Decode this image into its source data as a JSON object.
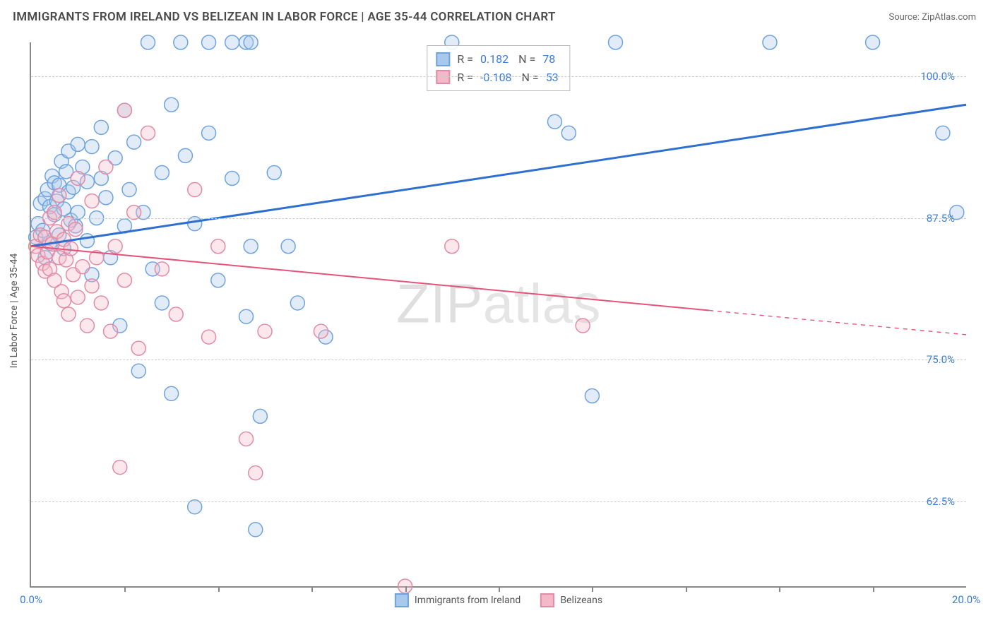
{
  "title": "IMMIGRANTS FROM IRELAND VS BELIZEAN IN LABOR FORCE | AGE 35-44 CORRELATION CHART",
  "source_label": "Source: ZipAtlas.com",
  "y_axis_title": "In Labor Force | Age 35-44",
  "watermark": {
    "bold": "ZIP",
    "thin": "atlas"
  },
  "chart": {
    "type": "scatter",
    "plot_bg": "#ffffff",
    "grid_color": "#cccccc",
    "axis_color": "#888888",
    "tick_label_color": "#3b7dd8",
    "marker_radius": 10,
    "marker_fill_opacity": 0.35,
    "marker_stroke_width": 1.5,
    "xlim": [
      0,
      20
    ],
    "ylim": [
      55,
      103
    ],
    "y_ticks": [
      {
        "v": 62.5,
        "label": "62.5%"
      },
      {
        "v": 75.0,
        "label": "75.0%"
      },
      {
        "v": 87.5,
        "label": "87.5%"
      },
      {
        "v": 100.0,
        "label": "100.0%"
      }
    ],
    "x_ticks_minor": [
      2,
      4,
      6,
      8,
      10,
      12,
      14,
      16,
      18
    ],
    "x_tick_labels": [
      {
        "v": 0,
        "label": "0.0%"
      },
      {
        "v": 20,
        "label": "20.0%"
      }
    ],
    "series": [
      {
        "id": "ireland",
        "name": "Immigrants from Ireland",
        "color_stroke": "#6fa3e0",
        "color_fill": "#a9c9ec",
        "r_value": "0.182",
        "n_value": "78",
        "trend": {
          "color": "#2e6fd1",
          "width": 3,
          "x1": 0,
          "y1": 85.0,
          "x2": 20,
          "y2": 97.5,
          "solid_until_x": 20
        },
        "points": [
          [
            0.1,
            85.8
          ],
          [
            0.15,
            87.0
          ],
          [
            0.2,
            88.8
          ],
          [
            0.25,
            86.4
          ],
          [
            0.3,
            89.2
          ],
          [
            0.3,
            84.0
          ],
          [
            0.35,
            90.0
          ],
          [
            0.4,
            88.5
          ],
          [
            0.4,
            85.3
          ],
          [
            0.45,
            91.2
          ],
          [
            0.5,
            87.8
          ],
          [
            0.5,
            90.6
          ],
          [
            0.55,
            89.0
          ],
          [
            0.6,
            90.4
          ],
          [
            0.6,
            86.0
          ],
          [
            0.65,
            92.5
          ],
          [
            0.7,
            88.3
          ],
          [
            0.7,
            84.8
          ],
          [
            0.75,
            91.6
          ],
          [
            0.8,
            89.8
          ],
          [
            0.8,
            93.4
          ],
          [
            0.85,
            87.3
          ],
          [
            0.9,
            90.2
          ],
          [
            0.95,
            86.8
          ],
          [
            1.0,
            94.0
          ],
          [
            1.0,
            88.0
          ],
          [
            1.1,
            92.0
          ],
          [
            1.2,
            85.5
          ],
          [
            1.2,
            90.7
          ],
          [
            1.3,
            93.8
          ],
          [
            1.3,
            82.5
          ],
          [
            1.4,
            87.5
          ],
          [
            1.5,
            91.0
          ],
          [
            1.5,
            95.5
          ],
          [
            1.6,
            89.3
          ],
          [
            1.7,
            84.0
          ],
          [
            1.8,
            92.8
          ],
          [
            1.9,
            78.0
          ],
          [
            2.0,
            97.0
          ],
          [
            2.0,
            86.8
          ],
          [
            2.1,
            90.0
          ],
          [
            2.2,
            94.2
          ],
          [
            2.3,
            74.0
          ],
          [
            2.4,
            88.0
          ],
          [
            2.5,
            103.0
          ],
          [
            2.6,
            83.0
          ],
          [
            2.8,
            91.5
          ],
          [
            2.8,
            80.0
          ],
          [
            3.0,
            97.5
          ],
          [
            3.0,
            72.0
          ],
          [
            3.2,
            103.0
          ],
          [
            3.3,
            93.0
          ],
          [
            3.5,
            87.0
          ],
          [
            3.5,
            62.0
          ],
          [
            3.8,
            103.0
          ],
          [
            3.8,
            95.0
          ],
          [
            4.0,
            82.0
          ],
          [
            4.3,
            103.0
          ],
          [
            4.3,
            91.0
          ],
          [
            4.6,
            103.0
          ],
          [
            4.6,
            78.8
          ],
          [
            4.7,
            103.0
          ],
          [
            4.7,
            85.0
          ],
          [
            4.8,
            60.0
          ],
          [
            4.9,
            70.0
          ],
          [
            5.2,
            91.5
          ],
          [
            5.5,
            85.0
          ],
          [
            5.7,
            80.0
          ],
          [
            6.3,
            77.0
          ],
          [
            9.0,
            103.0
          ],
          [
            11.2,
            96.0
          ],
          [
            11.5,
            95.0
          ],
          [
            12.0,
            71.8
          ],
          [
            12.5,
            103.0
          ],
          [
            15.8,
            103.0
          ],
          [
            18.0,
            103.0
          ],
          [
            19.5,
            95.0
          ],
          [
            19.8,
            88.0
          ]
        ]
      },
      {
        "id": "belizean",
        "name": "Belizeans",
        "color_stroke": "#e48aa5",
        "color_fill": "#f4b9c9",
        "r_value": "-0.108",
        "n_value": "53",
        "trend": {
          "color": "#e6537a",
          "width": 2,
          "x1": 0,
          "y1": 85.0,
          "x2": 20,
          "y2": 77.2,
          "solid_until_x": 14.5
        },
        "points": [
          [
            0.1,
            85.0
          ],
          [
            0.15,
            84.2
          ],
          [
            0.2,
            86.0
          ],
          [
            0.25,
            83.5
          ],
          [
            0.3,
            85.8
          ],
          [
            0.3,
            82.8
          ],
          [
            0.35,
            84.5
          ],
          [
            0.4,
            87.5
          ],
          [
            0.4,
            83.0
          ],
          [
            0.45,
            85.2
          ],
          [
            0.5,
            88.0
          ],
          [
            0.5,
            82.0
          ],
          [
            0.55,
            86.3
          ],
          [
            0.6,
            84.0
          ],
          [
            0.6,
            89.5
          ],
          [
            0.65,
            81.0
          ],
          [
            0.7,
            85.6
          ],
          [
            0.7,
            80.2
          ],
          [
            0.75,
            83.8
          ],
          [
            0.8,
            87.0
          ],
          [
            0.8,
            79.0
          ],
          [
            0.85,
            84.8
          ],
          [
            0.9,
            82.5
          ],
          [
            0.95,
            86.5
          ],
          [
            1.0,
            80.5
          ],
          [
            1.0,
            91.0
          ],
          [
            1.1,
            83.2
          ],
          [
            1.2,
            78.0
          ],
          [
            1.3,
            89.0
          ],
          [
            1.3,
            81.5
          ],
          [
            1.4,
            84.0
          ],
          [
            1.5,
            80.0
          ],
          [
            1.6,
            92.0
          ],
          [
            1.7,
            77.5
          ],
          [
            1.8,
            85.0
          ],
          [
            1.9,
            65.5
          ],
          [
            2.0,
            97.0
          ],
          [
            2.0,
            82.0
          ],
          [
            2.2,
            88.0
          ],
          [
            2.3,
            76.0
          ],
          [
            2.5,
            95.0
          ],
          [
            2.8,
            83.0
          ],
          [
            3.1,
            79.0
          ],
          [
            3.5,
            90.0
          ],
          [
            3.8,
            77.0
          ],
          [
            4.0,
            85.0
          ],
          [
            4.6,
            68.0
          ],
          [
            4.8,
            65.0
          ],
          [
            5.0,
            77.5
          ],
          [
            6.2,
            77.5
          ],
          [
            8.0,
            55.0
          ],
          [
            11.8,
            78.0
          ],
          [
            9.0,
            85.0
          ]
        ]
      }
    ],
    "bottom_legend": [
      {
        "series": "ireland"
      },
      {
        "series": "belizean"
      }
    ]
  }
}
